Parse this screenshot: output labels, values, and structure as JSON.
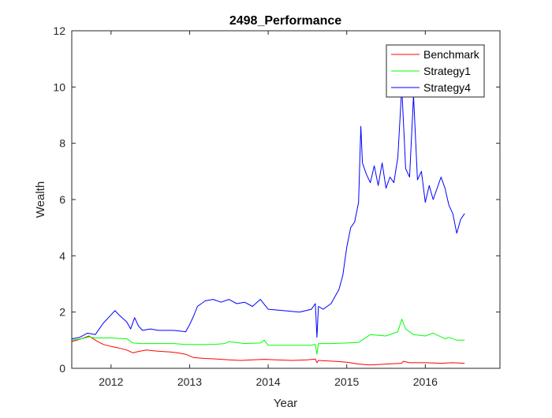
{
  "chart_data": {
    "type": "line",
    "title": "2498_Performance",
    "xlabel": "Year",
    "ylabel": "Wealth",
    "xlim": [
      2011.5,
      2016.95
    ],
    "ylim": [
      0,
      12
    ],
    "xticks": [
      2012,
      2013,
      2014,
      2015,
      2016
    ],
    "xtick_labels": [
      "2012",
      "2013",
      "2014",
      "2015",
      "2016"
    ],
    "yticks": [
      0,
      2,
      4,
      6,
      8,
      10,
      12
    ],
    "ytick_labels": [
      "0",
      "2",
      "4",
      "6",
      "8",
      "10",
      "12"
    ],
    "grid": false,
    "legend_position": "top-right",
    "series": [
      {
        "name": "Benchmark",
        "color": "#ff0000",
        "x": [
          2011.5,
          2011.62,
          2011.72,
          2011.8,
          2011.9,
          2012.0,
          2012.1,
          2012.2,
          2012.28,
          2012.35,
          2012.45,
          2012.55,
          2012.65,
          2012.75,
          2012.85,
          2012.95,
          2013.05,
          2013.2,
          2013.35,
          2013.5,
          2013.65,
          2013.8,
          2013.95,
          2014.1,
          2014.3,
          2014.5,
          2014.6,
          2014.62,
          2014.64,
          2014.7,
          2014.85,
          2015.0,
          2015.15,
          2015.3,
          2015.5,
          2015.7,
          2015.72,
          2015.8,
          2016.0,
          2016.2,
          2016.35,
          2016.5
        ],
        "y": [
          0.95,
          1.05,
          1.15,
          1.0,
          0.85,
          0.78,
          0.72,
          0.65,
          0.55,
          0.6,
          0.65,
          0.62,
          0.6,
          0.58,
          0.55,
          0.5,
          0.38,
          0.35,
          0.33,
          0.3,
          0.28,
          0.3,
          0.32,
          0.3,
          0.28,
          0.3,
          0.33,
          0.2,
          0.28,
          0.27,
          0.25,
          0.22,
          0.15,
          0.12,
          0.15,
          0.18,
          0.25,
          0.2,
          0.2,
          0.18,
          0.2,
          0.18
        ]
      },
      {
        "name": "Strategy1",
        "color": "#00ff00",
        "x": [
          2011.5,
          2011.62,
          2011.72,
          2011.8,
          2012.0,
          2012.2,
          2012.28,
          2012.4,
          2012.6,
          2012.8,
          2012.95,
          2013.1,
          2013.3,
          2013.45,
          2013.5,
          2013.7,
          2013.9,
          2013.95,
          2014.0,
          2014.3,
          2014.55,
          2014.6,
          2014.62,
          2014.64,
          2014.8,
          2015.0,
          2015.15,
          2015.3,
          2015.5,
          2015.65,
          2015.7,
          2015.75,
          2015.85,
          2016.0,
          2016.1,
          2016.25,
          2016.3,
          2016.4,
          2016.5
        ],
        "y": [
          1.0,
          1.05,
          1.12,
          1.08,
          1.08,
          1.05,
          0.9,
          0.88,
          0.88,
          0.88,
          0.85,
          0.85,
          0.85,
          0.88,
          0.95,
          0.88,
          0.9,
          1.0,
          0.82,
          0.82,
          0.82,
          0.85,
          0.5,
          0.88,
          0.88,
          0.9,
          0.92,
          1.2,
          1.15,
          1.3,
          1.75,
          1.4,
          1.2,
          1.15,
          1.25,
          1.05,
          1.1,
          1.0,
          1.0
        ]
      },
      {
        "name": "Strategy4",
        "color": "#0000ff",
        "x": [
          2011.5,
          2011.6,
          2011.7,
          2011.8,
          2011.9,
          2012.0,
          2012.05,
          2012.1,
          2012.2,
          2012.25,
          2012.3,
          2012.35,
          2012.4,
          2012.5,
          2012.6,
          2012.7,
          2012.8,
          2012.95,
          2013.0,
          2013.05,
          2013.1,
          2013.2,
          2013.3,
          2013.4,
          2013.5,
          2013.6,
          2013.7,
          2013.8,
          2013.9,
          2014.0,
          2014.2,
          2014.4,
          2014.55,
          2014.6,
          2014.62,
          2014.64,
          2014.7,
          2014.8,
          2014.9,
          2014.95,
          2015.0,
          2015.05,
          2015.1,
          2015.15,
          2015.18,
          2015.2,
          2015.25,
          2015.3,
          2015.35,
          2015.4,
          2015.45,
          2015.5,
          2015.55,
          2015.6,
          2015.65,
          2015.7,
          2015.75,
          2015.8,
          2015.85,
          2015.9,
          2015.95,
          2016.0,
          2016.05,
          2016.1,
          2016.2,
          2016.25,
          2016.3,
          2016.35,
          2016.4,
          2016.45,
          2016.5
        ],
        "y": [
          1.05,
          1.1,
          1.25,
          1.2,
          1.6,
          1.9,
          2.05,
          1.9,
          1.65,
          1.4,
          1.8,
          1.5,
          1.35,
          1.4,
          1.35,
          1.35,
          1.35,
          1.3,
          1.55,
          1.85,
          2.2,
          2.4,
          2.45,
          2.35,
          2.45,
          2.3,
          2.35,
          2.2,
          2.45,
          2.1,
          2.05,
          2.0,
          2.1,
          2.3,
          1.1,
          2.2,
          2.1,
          2.3,
          2.8,
          3.3,
          4.3,
          5.0,
          5.2,
          5.9,
          8.6,
          7.3,
          6.9,
          6.6,
          7.2,
          6.5,
          7.3,
          6.4,
          6.8,
          6.6,
          7.5,
          10.0,
          7.1,
          6.8,
          9.7,
          6.7,
          7.0,
          5.9,
          6.5,
          6.0,
          6.8,
          6.4,
          5.8,
          5.5,
          4.8,
          5.3,
          5.5
        ]
      }
    ]
  }
}
